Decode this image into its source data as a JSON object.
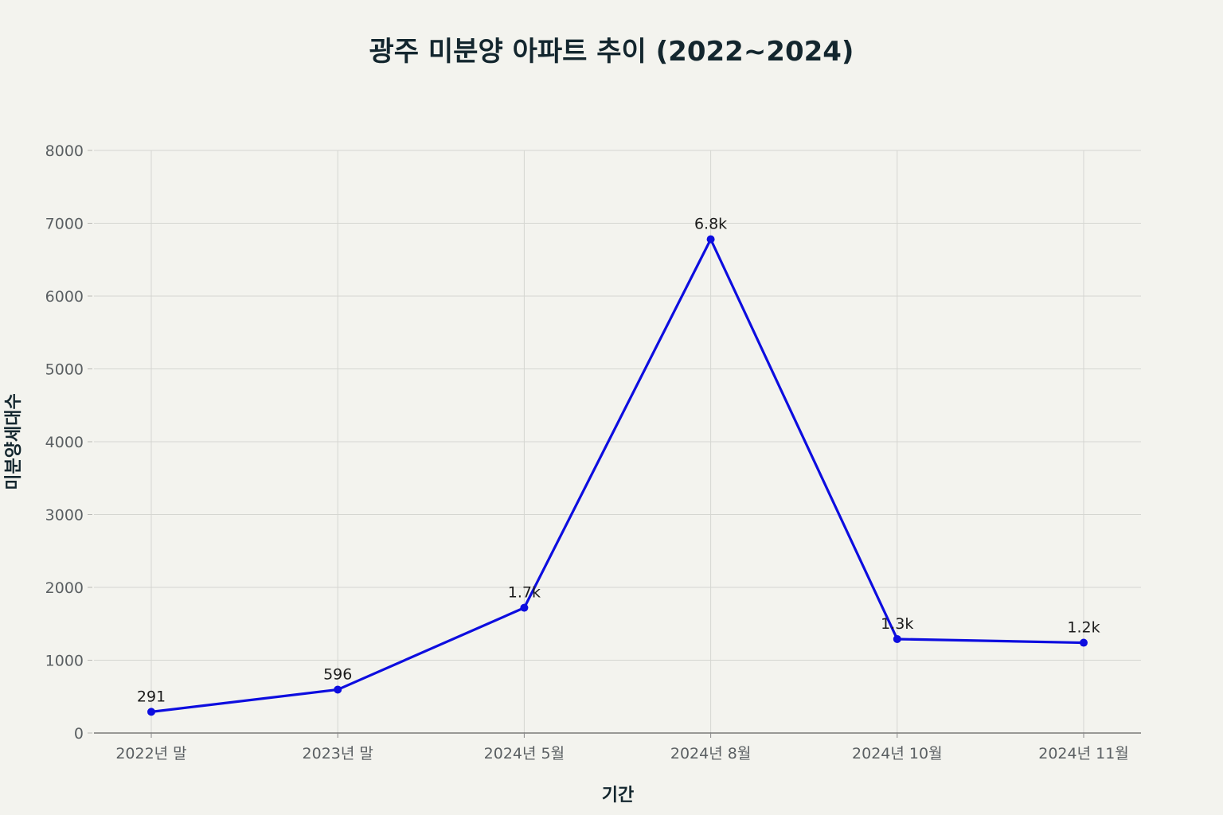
{
  "chart_data": {
    "type": "line",
    "title": "광주 미분양 아파트 추이 (2022~2024)",
    "xlabel": "기간",
    "ylabel": "미분양세대수",
    "categories": [
      "2022년 말",
      "2023년 말",
      "2024년 5월",
      "2024년 8월",
      "2024년 10월",
      "2024년 11월"
    ],
    "series": [
      {
        "values": [
          291,
          596,
          1720,
          6780,
          1290,
          1240
        ],
        "labels": [
          "291",
          "596",
          "1.7k",
          "6.8k",
          "1.3k",
          "1.2k"
        ],
        "color": "#0d0ddf"
      }
    ],
    "ylim": [
      0,
      8000
    ],
    "yticks": [
      0,
      1000,
      2000,
      3000,
      4000,
      5000,
      6000,
      7000,
      8000
    ],
    "grid": true,
    "legend": "none"
  }
}
